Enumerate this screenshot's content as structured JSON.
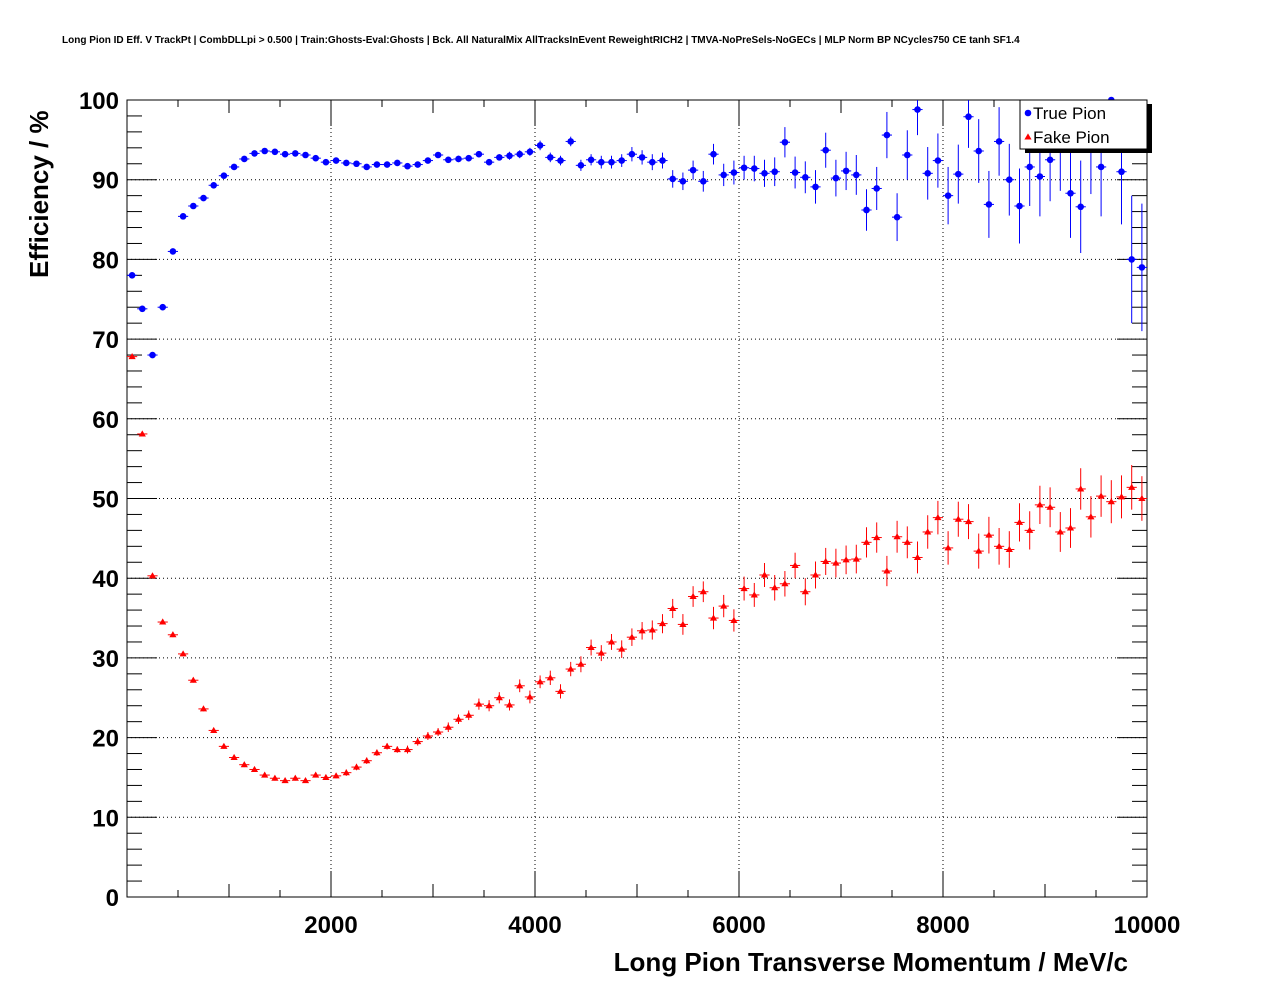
{
  "chart_data": {
    "type": "scatter",
    "title": "Long Pion ID Eff. V TrackPt | CombDLLpi > 0.500 | Train:Ghosts-Eval:Ghosts | Bck. All NaturalMix AllTracksInEvent ReweightRICH2 | TMVA-NoPreSels-NoGECs | MLP Norm BP NCycles750 CE tanh SF1.4",
    "xlabel": "Long Pion Transverse Momentum / MeV/c",
    "ylabel": "Efficiency / %",
    "xlim": [
      0,
      10000
    ],
    "ylim": [
      0,
      100
    ],
    "x_tick_labels": [
      "2000",
      "4000",
      "6000",
      "8000",
      "10000"
    ],
    "y_tick_labels": [
      "0",
      "10",
      "20",
      "30",
      "40",
      "50",
      "60",
      "70",
      "80",
      "90",
      "100"
    ],
    "grid": true,
    "legend_position": "top-right",
    "bin_width": 100,
    "series": [
      {
        "name": "True Pion",
        "color": "#0000ff",
        "marker": "circle",
        "x": [
          50,
          150,
          250,
          350,
          450,
          550,
          650,
          750,
          850,
          950,
          1050,
          1150,
          1250,
          1350,
          1450,
          1550,
          1650,
          1750,
          1850,
          1950,
          2050,
          2150,
          2250,
          2350,
          2450,
          2550,
          2650,
          2750,
          2850,
          2950,
          3050,
          3150,
          3250,
          3350,
          3450,
          3550,
          3650,
          3750,
          3850,
          3950,
          4050,
          4150,
          4250,
          4350,
          4450,
          4550,
          4650,
          4750,
          4850,
          4950,
          5050,
          5150,
          5250,
          5350,
          5450,
          5550,
          5650,
          5750,
          5850,
          5950,
          6050,
          6150,
          6250,
          6350,
          6450,
          6550,
          6650,
          6750,
          6850,
          6950,
          7050,
          7150,
          7250,
          7350,
          7450,
          7550,
          7650,
          7750,
          7850,
          7950,
          8050,
          8150,
          8250,
          8350,
          8450,
          8550,
          8650,
          8750,
          8850,
          8950,
          9050,
          9150,
          9250,
          9350,
          9450,
          9550,
          9650,
          9750,
          9850,
          9950
        ],
        "y": [
          78.0,
          73.8,
          68.0,
          74.0,
          81.0,
          85.4,
          86.7,
          87.7,
          89.3,
          90.5,
          91.6,
          92.6,
          93.3,
          93.6,
          93.5,
          93.2,
          93.3,
          93.1,
          92.7,
          92.2,
          92.4,
          92.1,
          92.0,
          91.6,
          91.9,
          91.9,
          92.1,
          91.7,
          91.9,
          92.4,
          93.1,
          92.5,
          92.6,
          92.7,
          93.2,
          92.2,
          92.8,
          93.0,
          93.2,
          93.5,
          94.3,
          92.8,
          92.4,
          94.8,
          91.8,
          92.5,
          92.2,
          92.2,
          92.4,
          93.2,
          92.8,
          92.2,
          92.4,
          90.1,
          89.8,
          91.2,
          89.8,
          93.2,
          90.6,
          90.9,
          91.5,
          91.4,
          90.8,
          91.0,
          94.7,
          90.9,
          90.3,
          89.1,
          93.7,
          90.2,
          91.1,
          90.6,
          86.2,
          88.9,
          95.6,
          85.3,
          93.1,
          98.8,
          90.8,
          92.4,
          88.0,
          90.7,
          97.9,
          93.6,
          86.9,
          94.8,
          90.0,
          86.7,
          91.6,
          90.4,
          92.5,
          94.0,
          88.3,
          86.6,
          94.2,
          91.6,
          100.0,
          91.0,
          80.0,
          79.0
        ],
        "yerr": [
          0.3,
          0.2,
          0.2,
          0.2,
          0.2,
          0.2,
          0.2,
          0.2,
          0.2,
          0.2,
          0.2,
          0.2,
          0.2,
          0.2,
          0.2,
          0.2,
          0.2,
          0.2,
          0.2,
          0.2,
          0.2,
          0.2,
          0.2,
          0.2,
          0.2,
          0.3,
          0.3,
          0.3,
          0.3,
          0.3,
          0.3,
          0.3,
          0.4,
          0.4,
          0.4,
          0.4,
          0.4,
          0.5,
          0.5,
          0.5,
          0.6,
          0.6,
          0.6,
          0.6,
          0.7,
          0.7,
          0.8,
          0.8,
          0.8,
          0.9,
          0.9,
          1.0,
          1.0,
          1.1,
          1.1,
          1.2,
          1.3,
          1.3,
          1.4,
          1.5,
          1.5,
          1.6,
          1.7,
          1.8,
          1.9,
          2.0,
          2.0,
          2.1,
          2.2,
          2.3,
          2.4,
          2.5,
          2.6,
          2.7,
          2.9,
          3.0,
          3.1,
          3.2,
          3.3,
          3.4,
          3.6,
          3.7,
          3.9,
          4.0,
          4.2,
          4.3,
          4.5,
          4.7,
          4.9,
          5.0,
          5.2,
          5.4,
          5.6,
          5.8,
          6.0,
          6.2,
          6.4,
          6.6,
          8.0,
          8.0
        ]
      },
      {
        "name": "Fake Pion",
        "color": "#ff0000",
        "marker": "triangle",
        "x": [
          50,
          150,
          250,
          350,
          450,
          550,
          650,
          750,
          850,
          950,
          1050,
          1150,
          1250,
          1350,
          1450,
          1550,
          1650,
          1750,
          1850,
          1950,
          2050,
          2150,
          2250,
          2350,
          2450,
          2550,
          2650,
          2750,
          2850,
          2950,
          3050,
          3150,
          3250,
          3350,
          3450,
          3550,
          3650,
          3750,
          3850,
          3950,
          4050,
          4150,
          4250,
          4350,
          4450,
          4550,
          4650,
          4750,
          4850,
          4950,
          5050,
          5150,
          5250,
          5350,
          5450,
          5550,
          5650,
          5750,
          5850,
          5950,
          6050,
          6150,
          6250,
          6350,
          6450,
          6550,
          6650,
          6750,
          6850,
          6950,
          7050,
          7150,
          7250,
          7350,
          7450,
          7550,
          7650,
          7750,
          7850,
          7950,
          8050,
          8150,
          8250,
          8350,
          8450,
          8550,
          8650,
          8750,
          8850,
          8950,
          9050,
          9150,
          9250,
          9350,
          9450,
          9550,
          9650,
          9750,
          9850,
          9950
        ],
        "y": [
          67.8,
          58.1,
          40.3,
          34.5,
          32.9,
          30.5,
          27.2,
          23.6,
          20.9,
          18.9,
          17.5,
          16.6,
          16.0,
          15.3,
          14.9,
          14.6,
          14.9,
          14.6,
          15.3,
          15.0,
          15.2,
          15.6,
          16.3,
          17.1,
          18.1,
          18.9,
          18.5,
          18.5,
          19.5,
          20.2,
          20.7,
          21.3,
          22.3,
          22.8,
          24.2,
          24.0,
          25.0,
          24.1,
          26.5,
          25.1,
          27.0,
          27.5,
          25.8,
          28.6,
          29.2,
          31.3,
          30.6,
          32.0,
          31.1,
          32.6,
          33.4,
          33.5,
          34.3,
          36.2,
          34.2,
          37.7,
          38.3,
          35.0,
          36.5,
          34.7,
          38.7,
          37.9,
          40.4,
          38.8,
          39.3,
          41.6,
          38.3,
          40.4,
          42.1,
          41.9,
          42.3,
          42.4,
          44.5,
          45.1,
          40.9,
          45.2,
          44.5,
          42.6,
          45.8,
          47.6,
          43.8,
          47.4,
          47.1,
          43.4,
          45.4,
          44.0,
          43.6,
          47.0,
          46.0,
          49.2,
          48.9,
          45.8,
          46.3,
          51.2,
          47.7,
          50.3,
          49.6,
          50.2,
          51.4,
          50.0
        ],
        "yerr": [
          0.3,
          0.3,
          0.3,
          0.3,
          0.3,
          0.3,
          0.3,
          0.3,
          0.3,
          0.3,
          0.3,
          0.3,
          0.3,
          0.3,
          0.3,
          0.3,
          0.3,
          0.3,
          0.3,
          0.3,
          0.3,
          0.4,
          0.4,
          0.4,
          0.4,
          0.4,
          0.4,
          0.5,
          0.5,
          0.5,
          0.5,
          0.6,
          0.6,
          0.6,
          0.7,
          0.7,
          0.7,
          0.7,
          0.8,
          0.8,
          0.8,
          0.9,
          0.9,
          0.9,
          1.0,
          1.0,
          1.0,
          1.0,
          1.1,
          1.1,
          1.1,
          1.2,
          1.2,
          1.2,
          1.3,
          1.3,
          1.3,
          1.4,
          1.4,
          1.4,
          1.5,
          1.5,
          1.5,
          1.6,
          1.6,
          1.6,
          1.7,
          1.7,
          1.7,
          1.8,
          1.8,
          1.8,
          1.9,
          1.9,
          1.9,
          2.0,
          2.0,
          2.0,
          2.1,
          2.1,
          2.1,
          2.2,
          2.2,
          2.2,
          2.3,
          2.3,
          2.3,
          2.4,
          2.4,
          2.4,
          2.5,
          2.5,
          2.5,
          2.6,
          2.6,
          2.6,
          2.7,
          2.7,
          2.8,
          2.8
        ]
      }
    ]
  }
}
